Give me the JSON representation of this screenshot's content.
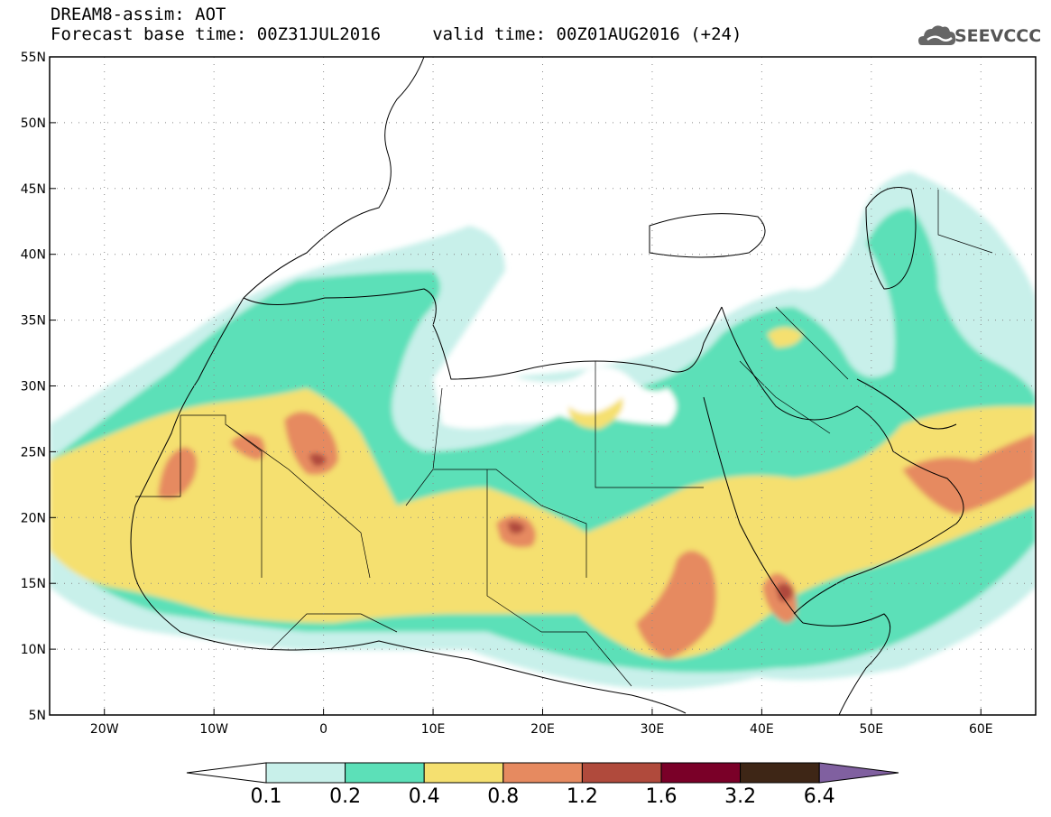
{
  "header": {
    "line1": "DREAM8-assim: AOT",
    "line2": "Forecast base time: 00Z31JUL2016     valid time: 00Z01AUG2016 (+24)",
    "logo_text": "SEEVCCC"
  },
  "map": {
    "lon_range": [
      -25,
      65
    ],
    "lat_range": [
      5,
      55
    ],
    "grid": true,
    "lat_ticks": [
      {
        "value": 55,
        "label": "55N"
      },
      {
        "value": 50,
        "label": "50N"
      },
      {
        "value": 45,
        "label": "45N"
      },
      {
        "value": 40,
        "label": "40N"
      },
      {
        "value": 35,
        "label": "35N"
      },
      {
        "value": 30,
        "label": "30N"
      },
      {
        "value": 25,
        "label": "25N"
      },
      {
        "value": 20,
        "label": "20N"
      },
      {
        "value": 15,
        "label": "15N"
      },
      {
        "value": 10,
        "label": "10N"
      },
      {
        "value": 5,
        "label": "5N"
      }
    ],
    "lon_ticks": [
      {
        "value": -20,
        "label": "20W"
      },
      {
        "value": -10,
        "label": "10W"
      },
      {
        "value": 0,
        "label": "0"
      },
      {
        "value": 10,
        "label": "10E"
      },
      {
        "value": 20,
        "label": "20E"
      },
      {
        "value": 30,
        "label": "30E"
      },
      {
        "value": 40,
        "label": "40E"
      },
      {
        "value": 50,
        "label": "50E"
      },
      {
        "value": 60,
        "label": "60E"
      }
    ]
  },
  "colorbar": {
    "levels": [
      "0.1",
      "0.2",
      "0.4",
      "0.8",
      "1.2",
      "1.6",
      "3.2",
      "6.4"
    ],
    "colors": [
      "#ffffff",
      "#c8f0ea",
      "#5ce0b8",
      "#f5e070",
      "#e68a60",
      "#b04a3c",
      "#7a0028",
      "#3e2616",
      "#8060a0"
    ]
  }
}
